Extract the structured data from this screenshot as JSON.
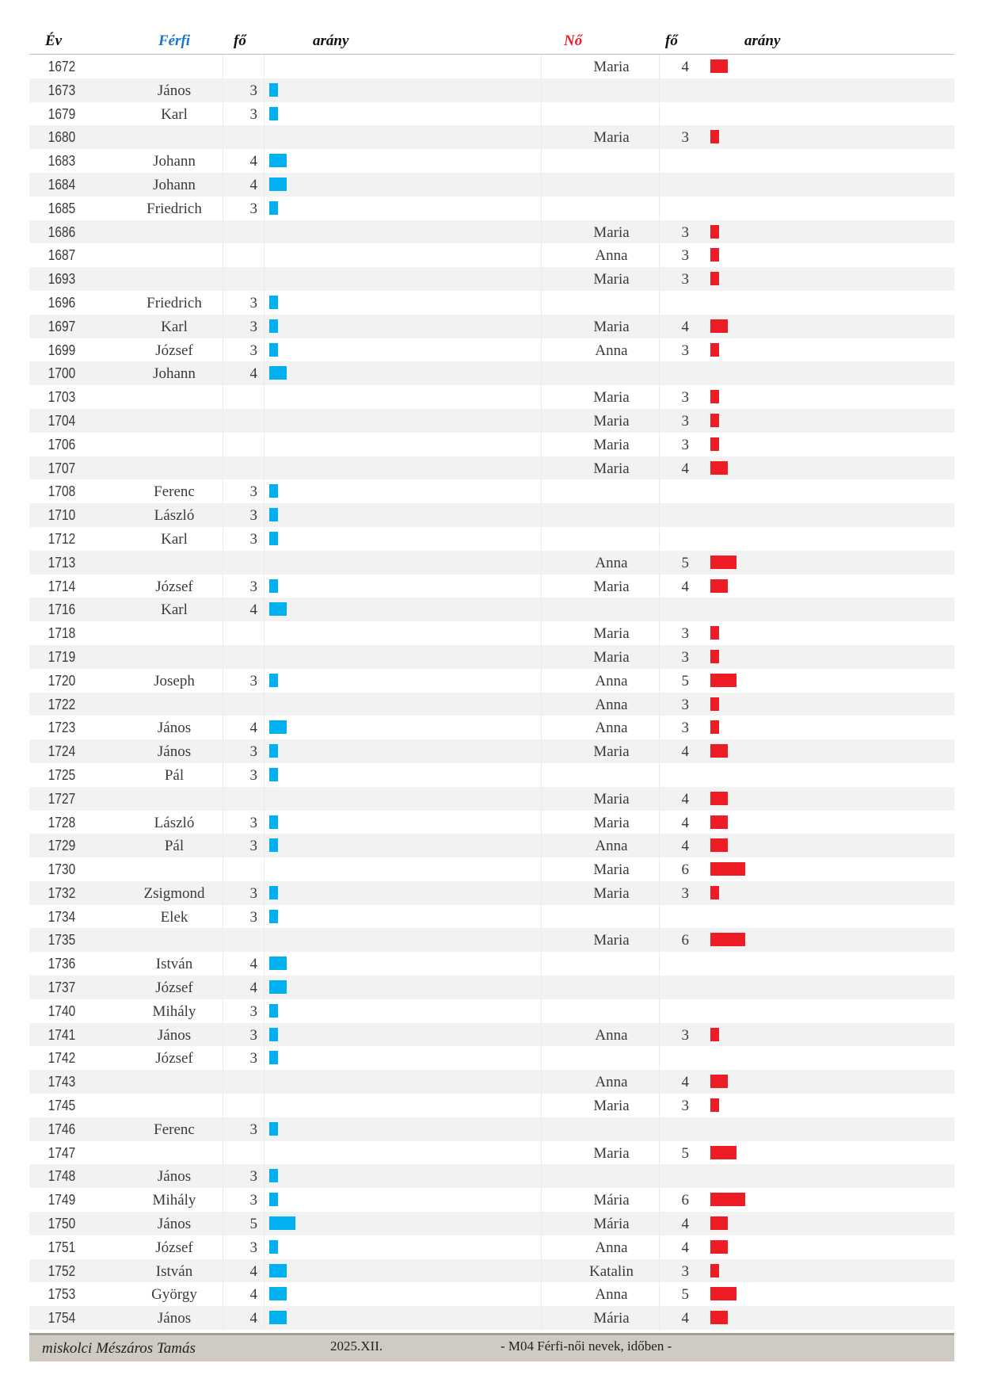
{
  "header": {
    "year": "Év",
    "male": "Férfi",
    "male_count": "fő",
    "male_ratio": "arány",
    "female": "Nő",
    "female_count": "fő",
    "female_ratio": "arány"
  },
  "colors": {
    "male_bar": "#00b0ef",
    "female_bar": "#ee1c25",
    "male_header": "#1877c8",
    "female_header": "#ee1c25"
  },
  "rows": [
    {
      "year": "1672",
      "male": "",
      "male_count": "",
      "female": "Maria",
      "female_count": "4"
    },
    {
      "year": "1673",
      "male": "János",
      "male_count": "3",
      "female": "",
      "female_count": ""
    },
    {
      "year": "1679",
      "male": "Karl",
      "male_count": "3",
      "female": "",
      "female_count": ""
    },
    {
      "year": "1680",
      "male": "",
      "male_count": "",
      "female": "Maria",
      "female_count": "3"
    },
    {
      "year": "1683",
      "male": "Johann",
      "male_count": "4",
      "female": "",
      "female_count": ""
    },
    {
      "year": "1684",
      "male": "Johann",
      "male_count": "4",
      "female": "",
      "female_count": ""
    },
    {
      "year": "1685",
      "male": "Friedrich",
      "male_count": "3",
      "female": "",
      "female_count": ""
    },
    {
      "year": "1686",
      "male": "",
      "male_count": "",
      "female": "Maria",
      "female_count": "3"
    },
    {
      "year": "1687",
      "male": "",
      "male_count": "",
      "female": "Anna",
      "female_count": "3"
    },
    {
      "year": "1693",
      "male": "",
      "male_count": "",
      "female": "Maria",
      "female_count": "3"
    },
    {
      "year": "1696",
      "male": "Friedrich",
      "male_count": "3",
      "female": "",
      "female_count": ""
    },
    {
      "year": "1697",
      "male": "Karl",
      "male_count": "3",
      "female": "Maria",
      "female_count": "4"
    },
    {
      "year": "1699",
      "male": "József",
      "male_count": "3",
      "female": "Anna",
      "female_count": "3"
    },
    {
      "year": "1700",
      "male": "Johann",
      "male_count": "4",
      "female": "",
      "female_count": ""
    },
    {
      "year": "1703",
      "male": "",
      "male_count": "",
      "female": "Maria",
      "female_count": "3"
    },
    {
      "year": "1704",
      "male": "",
      "male_count": "",
      "female": "Maria",
      "female_count": "3"
    },
    {
      "year": "1706",
      "male": "",
      "male_count": "",
      "female": "Maria",
      "female_count": "3"
    },
    {
      "year": "1707",
      "male": "",
      "male_count": "",
      "female": "Maria",
      "female_count": "4"
    },
    {
      "year": "1708",
      "male": "Ferenc",
      "male_count": "3",
      "female": "",
      "female_count": ""
    },
    {
      "year": "1710",
      "male": "László",
      "male_count": "3",
      "female": "",
      "female_count": ""
    },
    {
      "year": "1712",
      "male": "Karl",
      "male_count": "3",
      "female": "",
      "female_count": ""
    },
    {
      "year": "1713",
      "male": "",
      "male_count": "",
      "female": "Anna",
      "female_count": "5"
    },
    {
      "year": "1714",
      "male": "József",
      "male_count": "3",
      "female": "Maria",
      "female_count": "4"
    },
    {
      "year": "1716",
      "male": "Karl",
      "male_count": "4",
      "female": "",
      "female_count": ""
    },
    {
      "year": "1718",
      "male": "",
      "male_count": "",
      "female": "Maria",
      "female_count": "3"
    },
    {
      "year": "1719",
      "male": "",
      "male_count": "",
      "female": "Maria",
      "female_count": "3"
    },
    {
      "year": "1720",
      "male": "Joseph",
      "male_count": "3",
      "female": "Anna",
      "female_count": "5"
    },
    {
      "year": "1722",
      "male": "",
      "male_count": "",
      "female": "Anna",
      "female_count": "3"
    },
    {
      "year": "1723",
      "male": "János",
      "male_count": "4",
      "female": "Anna",
      "female_count": "3"
    },
    {
      "year": "1724",
      "male": "János",
      "male_count": "3",
      "female": "Maria",
      "female_count": "4"
    },
    {
      "year": "1725",
      "male": "Pál",
      "male_count": "3",
      "female": "",
      "female_count": ""
    },
    {
      "year": "1727",
      "male": "",
      "male_count": "",
      "female": "Maria",
      "female_count": "4"
    },
    {
      "year": "1728",
      "male": "László",
      "male_count": "3",
      "female": "Maria",
      "female_count": "4"
    },
    {
      "year": "1729",
      "male": "Pál",
      "male_count": "3",
      "female": "Anna",
      "female_count": "4"
    },
    {
      "year": "1730",
      "male": "",
      "male_count": "",
      "female": "Maria",
      "female_count": "6"
    },
    {
      "year": "1732",
      "male": "Zsigmond",
      "male_count": "3",
      "female": "Maria",
      "female_count": "3"
    },
    {
      "year": "1734",
      "male": "Elek",
      "male_count": "3",
      "female": "",
      "female_count": ""
    },
    {
      "year": "1735",
      "male": "",
      "male_count": "",
      "female": "Maria",
      "female_count": "6"
    },
    {
      "year": "1736",
      "male": "István",
      "male_count": "4",
      "female": "",
      "female_count": ""
    },
    {
      "year": "1737",
      "male": "József",
      "male_count": "4",
      "female": "",
      "female_count": ""
    },
    {
      "year": "1740",
      "male": "Mihály",
      "male_count": "3",
      "female": "",
      "female_count": ""
    },
    {
      "year": "1741",
      "male": "János",
      "male_count": "3",
      "female": "Anna",
      "female_count": "3"
    },
    {
      "year": "1742",
      "male": "József",
      "male_count": "3",
      "female": "",
      "female_count": ""
    },
    {
      "year": "1743",
      "male": "",
      "male_count": "",
      "female": "Anna",
      "female_count": "4"
    },
    {
      "year": "1745",
      "male": "",
      "male_count": "",
      "female": "Maria",
      "female_count": "3"
    },
    {
      "year": "1746",
      "male": "Ferenc",
      "male_count": "3",
      "female": "",
      "female_count": ""
    },
    {
      "year": "1747",
      "male": "",
      "male_count": "",
      "female": "Maria",
      "female_count": "5"
    },
    {
      "year": "1748",
      "male": "János",
      "male_count": "3",
      "female": "",
      "female_count": ""
    },
    {
      "year": "1749",
      "male": "Mihály",
      "male_count": "3",
      "female": "Mária",
      "female_count": "6"
    },
    {
      "year": "1750",
      "male": "János",
      "male_count": "5",
      "female": "Mária",
      "female_count": "4"
    },
    {
      "year": "1751",
      "male": "József",
      "male_count": "3",
      "female": "Anna",
      "female_count": "4"
    },
    {
      "year": "1752",
      "male": "István",
      "male_count": "4",
      "female": "Katalin",
      "female_count": "3"
    },
    {
      "year": "1753",
      "male": "György",
      "male_count": "4",
      "female": "Anna",
      "female_count": "5"
    },
    {
      "year": "1754",
      "male": "János",
      "male_count": "4",
      "female": "Mária",
      "female_count": "4"
    }
  ],
  "footer": {
    "author": "miskolci Mészáros Tamás",
    "date": "2025.XII.",
    "title": "- M04  Férfi-női nevek, időben -"
  }
}
